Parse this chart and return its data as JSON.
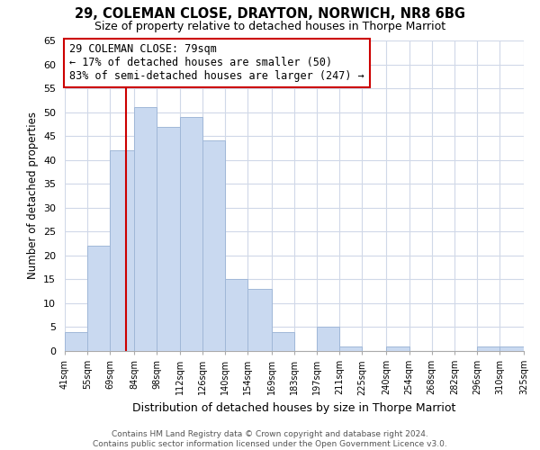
{
  "title": "29, COLEMAN CLOSE, DRAYTON, NORWICH, NR8 6BG",
  "subtitle": "Size of property relative to detached houses in Thorpe Marriot",
  "xlabel": "Distribution of detached houses by size in Thorpe Marriot",
  "ylabel": "Number of detached properties",
  "bin_edges": [
    41,
    55,
    69,
    84,
    98,
    112,
    126,
    140,
    154,
    169,
    183,
    197,
    211,
    225,
    240,
    254,
    268,
    282,
    296,
    310,
    325
  ],
  "bar_heights": [
    4,
    22,
    42,
    51,
    47,
    49,
    44,
    15,
    13,
    4,
    0,
    5,
    1,
    0,
    1,
    0,
    0,
    0,
    1,
    1
  ],
  "bar_color": "#c9d9f0",
  "bar_edge_color": "#a0b8d8",
  "grid_color": "#d0d8e8",
  "property_line_x": 79,
  "property_line_color": "#cc0000",
  "annotation_line1": "29 COLEMAN CLOSE: 79sqm",
  "annotation_line2": "← 17% of detached houses are smaller (50)",
  "annotation_line3": "83% of semi-detached houses are larger (247) →",
  "annotation_box_color": "white",
  "annotation_box_edge_color": "#cc0000",
  "ylim": [
    0,
    65
  ],
  "yticks": [
    0,
    5,
    10,
    15,
    20,
    25,
    30,
    35,
    40,
    45,
    50,
    55,
    60,
    65
  ],
  "tick_labels": [
    "41sqm",
    "55sqm",
    "69sqm",
    "84sqm",
    "98sqm",
    "112sqm",
    "126sqm",
    "140sqm",
    "154sqm",
    "169sqm",
    "183sqm",
    "197sqm",
    "211sqm",
    "225sqm",
    "240sqm",
    "254sqm",
    "268sqm",
    "282sqm",
    "296sqm",
    "310sqm",
    "325sqm"
  ],
  "footer_text": "Contains HM Land Registry data © Crown copyright and database right 2024.\nContains public sector information licensed under the Open Government Licence v3.0.",
  "background_color": "#ffffff"
}
